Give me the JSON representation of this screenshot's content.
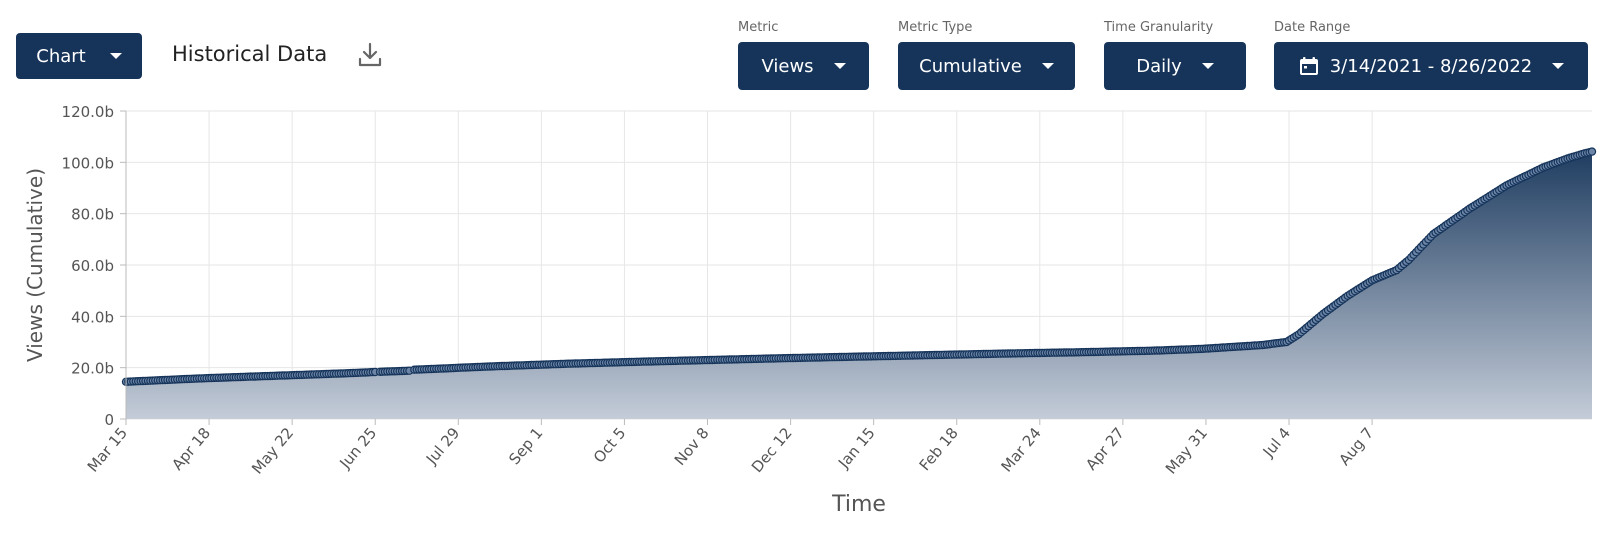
{
  "toolbar": {
    "view_button": "Chart",
    "title": "Historical Data",
    "metric": {
      "label": "Metric",
      "value": "Views"
    },
    "metric_type": {
      "label": "Metric Type",
      "value": "Cumulative"
    },
    "granularity": {
      "label": "Time Granularity",
      "value": "Daily"
    },
    "date_range": {
      "label": "Date Range",
      "value": "3/14/2021 - 8/26/2022"
    }
  },
  "colors": {
    "accent": "#16345a",
    "fill_top": "#1f3d61",
    "fill_bottom": "#c4ccd8",
    "marker_fill": "#6d86a8"
  },
  "chart_data": {
    "type": "area",
    "xlabel": "Time",
    "ylabel": "Views (Cumulative)",
    "ylim": [
      0,
      120
    ],
    "y_unit_suffix": "b",
    "y_ticks": [
      "0",
      "20.0b",
      "40.0b",
      "60.0b",
      "80.0b",
      "100.0b",
      "120.0b"
    ],
    "x_tick_labels": [
      "Mar 15",
      "Apr 18",
      "May 22",
      "Jun 25",
      "Jul 29",
      "Sep 1",
      "Oct 5",
      "Nov 8",
      "Dec 12",
      "Jan 15",
      "Feb 18",
      "Mar 24",
      "Apr 27",
      "May 31",
      "Jul 4",
      "Aug 7"
    ],
    "x_range_days": [
      0,
      530
    ],
    "grid": true,
    "gaps": [
      [
        102,
        104
      ],
      [
        116,
        118
      ]
    ],
    "series": [
      {
        "values_points": [
          [
            0,
            14.5
          ],
          [
            30,
            15.8
          ],
          [
            60,
            16.8
          ],
          [
            90,
            17.8
          ],
          [
            102,
            18.3
          ],
          [
            104,
            18.4
          ],
          [
            116,
            18.8
          ],
          [
            118,
            19.2
          ],
          [
            150,
            20.5
          ],
          [
            180,
            21.5
          ],
          [
            210,
            22.3
          ],
          [
            240,
            23.0
          ],
          [
            270,
            23.7
          ],
          [
            300,
            24.3
          ],
          [
            330,
            24.9
          ],
          [
            360,
            25.5
          ],
          [
            390,
            26.0
          ],
          [
            420,
            26.6
          ],
          [
            440,
            27.3
          ],
          [
            465,
            28.8
          ],
          [
            475,
            30.0
          ],
          [
            480,
            33.0
          ],
          [
            490,
            41.0
          ],
          [
            500,
            48.0
          ],
          [
            510,
            54.0
          ],
          [
            520,
            58.0
          ],
          [
            525,
            62.0
          ],
          [
            535,
            72.0
          ],
          [
            550,
            82.0
          ],
          [
            565,
            91.0
          ],
          [
            580,
            98.0
          ],
          [
            590,
            101.5
          ],
          [
            597,
            103.5
          ],
          [
            600,
            104.2
          ]
        ]
      }
    ]
  }
}
